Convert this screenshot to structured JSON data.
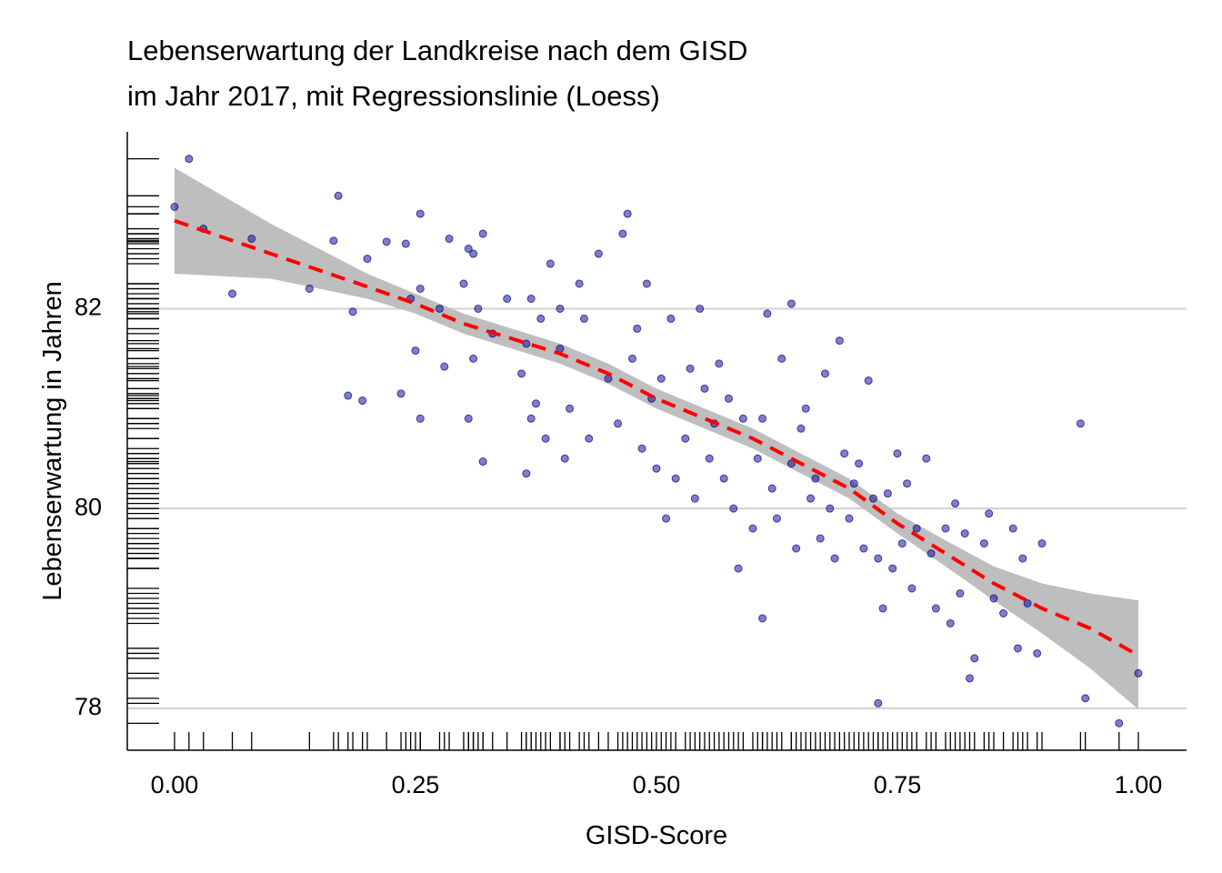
{
  "chart_data": {
    "type": "scatter",
    "title": [
      "Lebenserwartung der Landkreise nach dem GISD",
      "im Jahr 2017, mit Regressionslinie (Loess)"
    ],
    "x_label": "GISD-Score",
    "y_label": "Lebenserwartung in Jahren",
    "xlim": [
      -0.049,
      1.05
    ],
    "ylim": [
      77.58,
      83.77
    ],
    "xticks": [
      {
        "value": 0,
        "label": "0.00"
      },
      {
        "value": 0.25,
        "label": "0.25"
      },
      {
        "value": 0.5,
        "label": "0.50"
      },
      {
        "value": 0.75,
        "label": "0.75"
      },
      {
        "value": 1,
        "label": "1.00"
      }
    ],
    "yticks": [
      78,
      80,
      82
    ],
    "grid": true,
    "rug": true,
    "points": {
      "color": "#00008b",
      "x": [
        0.0,
        0.015,
        0.03,
        0.06,
        0.08,
        0.14,
        0.165,
        0.17,
        0.18,
        0.185,
        0.195,
        0.2,
        0.22,
        0.235,
        0.24,
        0.245,
        0.25,
        0.255,
        0.255,
        0.255,
        0.275,
        0.28,
        0.285,
        0.3,
        0.305,
        0.305,
        0.31,
        0.31,
        0.315,
        0.32,
        0.32,
        0.33,
        0.345,
        0.36,
        0.365,
        0.365,
        0.37,
        0.37,
        0.375,
        0.38,
        0.385,
        0.39,
        0.4,
        0.4,
        0.405,
        0.41,
        0.42,
        0.425,
        0.43,
        0.44,
        0.45,
        0.46,
        0.465,
        0.47,
        0.475,
        0.48,
        0.485,
        0.49,
        0.495,
        0.5,
        0.505,
        0.51,
        0.515,
        0.52,
        0.53,
        0.535,
        0.54,
        0.545,
        0.55,
        0.555,
        0.56,
        0.565,
        0.57,
        0.575,
        0.58,
        0.585,
        0.59,
        0.6,
        0.605,
        0.61,
        0.61,
        0.615,
        0.62,
        0.625,
        0.63,
        0.64,
        0.64,
        0.645,
        0.65,
        0.655,
        0.66,
        0.665,
        0.67,
        0.675,
        0.68,
        0.685,
        0.69,
        0.695,
        0.7,
        0.705,
        0.71,
        0.715,
        0.72,
        0.725,
        0.73,
        0.73,
        0.735,
        0.74,
        0.745,
        0.75,
        0.755,
        0.76,
        0.765,
        0.77,
        0.78,
        0.785,
        0.79,
        0.8,
        0.805,
        0.81,
        0.815,
        0.82,
        0.825,
        0.83,
        0.84,
        0.845,
        0.85,
        0.86,
        0.87,
        0.875,
        0.88,
        0.885,
        0.895,
        0.9,
        0.94,
        0.945,
        0.98,
        1.0
      ],
      "values": [
        83.02,
        83.5,
        82.8,
        82.15,
        82.7,
        82.2,
        82.68,
        83.13,
        81.13,
        81.97,
        81.08,
        82.5,
        82.67,
        81.15,
        82.65,
        82.1,
        81.58,
        82.2,
        82.95,
        80.9,
        82.0,
        81.42,
        82.7,
        82.25,
        82.6,
        80.9,
        82.55,
        81.5,
        82.0,
        80.47,
        82.75,
        81.75,
        82.1,
        81.35,
        80.35,
        81.65,
        82.1,
        80.9,
        81.05,
        81.9,
        80.7,
        82.45,
        82.0,
        81.6,
        80.5,
        81.0,
        82.25,
        81.9,
        80.7,
        82.55,
        81.3,
        80.85,
        82.75,
        82.95,
        81.5,
        81.8,
        80.6,
        82.25,
        81.1,
        80.4,
        81.3,
        79.9,
        81.9,
        80.3,
        80.7,
        81.4,
        80.1,
        82.0,
        81.2,
        80.5,
        80.85,
        81.45,
        80.3,
        81.1,
        80.0,
        79.4,
        80.9,
        79.8,
        80.5,
        80.9,
        78.9,
        81.95,
        80.2,
        79.9,
        81.5,
        82.05,
        80.45,
        79.6,
        80.8,
        81.0,
        80.1,
        80.3,
        79.7,
        81.35,
        80.0,
        79.5,
        81.68,
        80.55,
        79.9,
        80.25,
        80.45,
        79.6,
        81.28,
        80.1,
        78.05,
        79.5,
        79.0,
        80.15,
        79.4,
        80.55,
        79.65,
        80.25,
        79.2,
        79.8,
        80.5,
        79.55,
        79.0,
        79.8,
        78.85,
        80.05,
        79.15,
        79.75,
        78.3,
        78.5,
        79.65,
        79.95,
        79.1,
        78.95,
        79.8,
        78.6,
        79.5,
        79.05,
        78.55,
        79.65,
        80.85,
        78.1,
        77.85,
        78.35
      ]
    },
    "loess": {
      "color": "#ff0000",
      "band_color": "#bebebe",
      "x": [
        0,
        0.1,
        0.2,
        0.25,
        0.3,
        0.35,
        0.4,
        0.45,
        0.5,
        0.55,
        0.6,
        0.65,
        0.7,
        0.75,
        0.8,
        0.85,
        0.9,
        0.95,
        1.0
      ],
      "values": [
        82.88,
        82.55,
        82.22,
        82.05,
        81.85,
        81.7,
        81.55,
        81.35,
        81.1,
        80.9,
        80.7,
        80.45,
        80.2,
        79.85,
        79.55,
        79.25,
        79.0,
        78.8,
        78.53
      ],
      "upper": [
        83.41,
        82.85,
        82.35,
        82.15,
        81.95,
        81.8,
        81.65,
        81.45,
        81.2,
        81.0,
        80.8,
        80.55,
        80.3,
        79.95,
        79.68,
        79.42,
        79.25,
        79.15,
        79.08
      ],
      "lower": [
        82.35,
        82.3,
        82.1,
        81.95,
        81.75,
        81.6,
        81.45,
        81.25,
        81.0,
        80.8,
        80.6,
        80.35,
        80.1,
        79.75,
        79.42,
        79.08,
        78.75,
        78.4,
        77.99
      ]
    }
  }
}
